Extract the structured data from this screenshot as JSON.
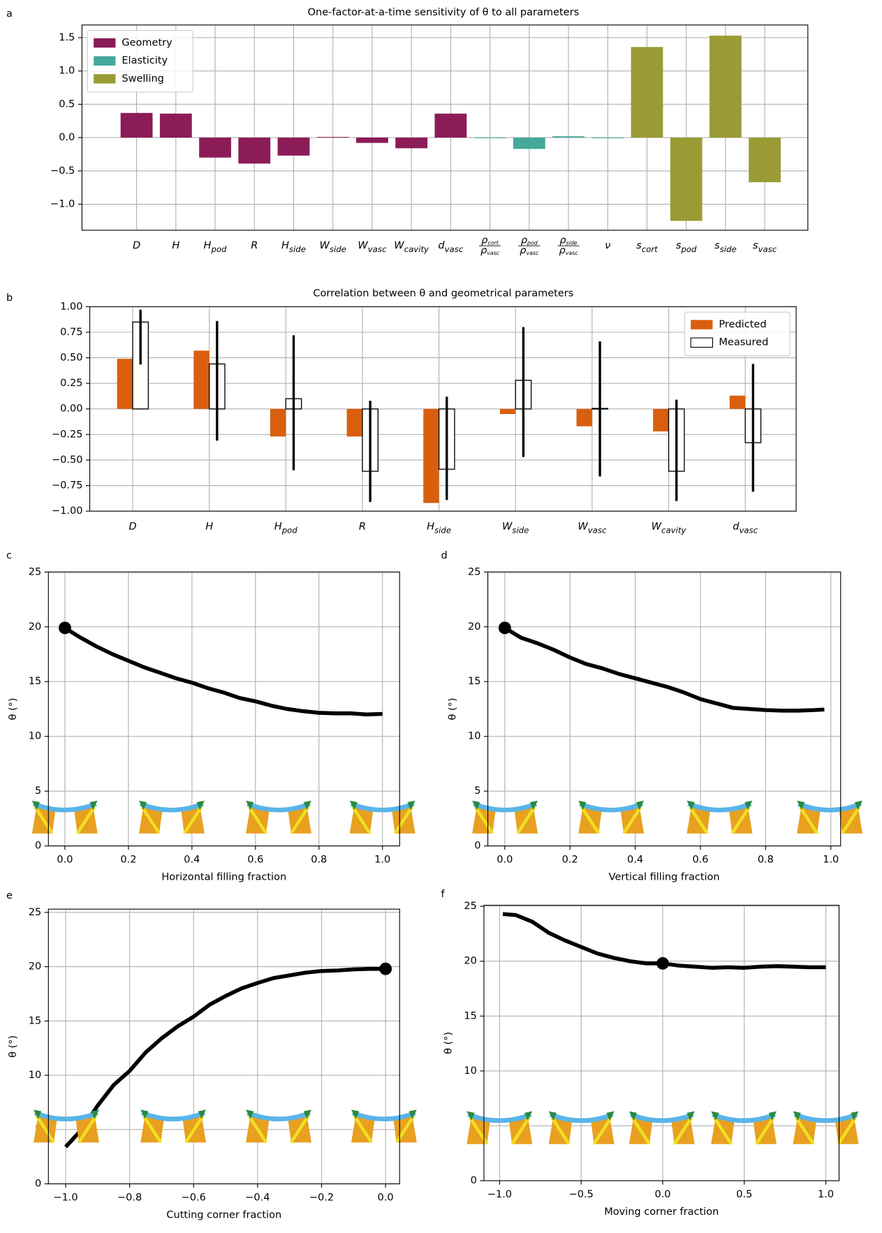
{
  "chart_data": [
    {
      "type": "bar",
      "label": "a",
      "title": "One-factor-at-a-time sensitivity of θ to all parameters",
      "categories": [
        "D",
        "H",
        {
          "main": "H",
          "sub": "pod"
        },
        "R",
        {
          "main": "H",
          "sub": "side"
        },
        {
          "main": "W",
          "sub": "side"
        },
        {
          "main": "W",
          "sub": "vasc"
        },
        {
          "main": "W",
          "sub": "cavity"
        },
        {
          "main": "d",
          "sub": "vasc"
        },
        {
          "main": "ρ",
          "sub": "cort",
          "den": {
            "main": "ρ",
            "sub": "vasc"
          }
        },
        {
          "main": "ρ",
          "sub": "pod",
          "den": {
            "main": "ρ",
            "sub": "vasc"
          }
        },
        {
          "main": "ρ",
          "sub": "side",
          "den": {
            "main": "ρ",
            "sub": "vasc"
          }
        },
        "ν",
        {
          "main": "s",
          "sub": "cort"
        },
        {
          "main": "s",
          "sub": "pod"
        },
        {
          "main": "s",
          "sub": "side"
        },
        {
          "main": "s",
          "sub": "vasc"
        }
      ],
      "series": [
        {
          "name": "Geometry",
          "color": "#8b1c57",
          "values": [
            0.37,
            0.36,
            -0.3,
            -0.39,
            -0.27,
            0.01,
            -0.08,
            -0.16,
            0.36,
            null,
            null,
            null,
            null,
            null,
            null,
            null,
            null
          ]
        },
        {
          "name": "Elasticity",
          "color": "#44a99b",
          "values": [
            null,
            null,
            null,
            null,
            null,
            null,
            null,
            null,
            null,
            0,
            -0.17,
            0.02,
            0,
            null,
            null,
            null,
            null
          ]
        },
        {
          "name": "Swelling",
          "color": "#9b9b36",
          "values": [
            null,
            null,
            null,
            null,
            null,
            null,
            null,
            null,
            null,
            null,
            null,
            null,
            null,
            1.36,
            -1.25,
            1.53,
            -0.67
          ]
        }
      ],
      "ylim": [
        -1.39,
        1.69
      ],
      "yticks": [
        1.5,
        {
          "value": 1.0,
          "label": "1.0"
        },
        0.5,
        {
          "value": 0.0,
          "label": "0.0"
        },
        {
          "value": -0.5,
          "label": "−0.5"
        },
        {
          "value": -1.0,
          "label": "−1.0"
        }
      ],
      "grid": true,
      "legend": "upper left"
    },
    {
      "type": "grouped_bar",
      "label": "b",
      "title": "Correlation between θ and geometrical parameters",
      "categories": [
        "D",
        "H",
        {
          "main": "H",
          "sub": "pod"
        },
        "R",
        {
          "main": "H",
          "sub": "side"
        },
        {
          "main": "W",
          "sub": "side"
        },
        {
          "main": "W",
          "sub": "vasc"
        },
        {
          "main": "W",
          "sub": "cavity"
        },
        {
          "main": "d",
          "sub": "vasc"
        }
      ],
      "series": [
        {
          "name": "Predicted",
          "color": "#d95f0e",
          "values": [
            0.49,
            0.57,
            -0.27,
            -0.27,
            -0.92,
            -0.05,
            -0.17,
            -0.22,
            0.13
          ]
        },
        {
          "name": "Measured",
          "color": "#ffffff",
          "edgecolor": "#000000",
          "values": [
            0.85,
            0.44,
            0.1,
            -0.61,
            -0.59,
            0.28,
            0.005,
            -0.61,
            -0.33
          ],
          "ci_low": [
            0.435,
            -0.31,
            -0.6,
            -0.91,
            -0.89,
            -0.47,
            -0.66,
            -0.9,
            -0.81
          ],
          "ci_high": [
            0.97,
            0.86,
            0.72,
            0.08,
            0.12,
            0.8,
            0.66,
            0.09,
            0.44
          ]
        }
      ],
      "ylim": [
        -1.0,
        1.0
      ],
      "yticks": [
        {
          "value": 1.0,
          "label": "1.00"
        },
        0.75,
        {
          "value": 0.5,
          "label": "0.50"
        },
        0.25,
        {
          "value": 0.0,
          "label": "0.00"
        },
        {
          "value": -0.25,
          "label": "−0.25"
        },
        {
          "value": -0.5,
          "label": "−0.50"
        },
        {
          "value": -0.75,
          "label": "−0.75"
        },
        {
          "value": -1.0,
          "label": "−1.00"
        }
      ],
      "grid": true,
      "legend": "upper right"
    },
    {
      "type": "line",
      "label": "c",
      "xlabel": "Horizontal filling fraction",
      "ylabel": "θ (°)",
      "color": "#000000",
      "x": [
        0,
        0.05,
        0.1,
        0.15,
        0.2,
        0.25,
        0.3,
        0.35,
        0.4,
        0.45,
        0.5,
        0.55,
        0.6,
        0.65,
        0.7,
        0.75,
        0.8,
        0.85,
        0.9,
        0.95,
        1.0
      ],
      "values": [
        19.9,
        19.0,
        18.2,
        17.5,
        16.9,
        16.3,
        15.8,
        15.3,
        14.9,
        14.4,
        14.0,
        13.5,
        13.2,
        12.8,
        12.5,
        12.3,
        12.15,
        12.1,
        12.1,
        12.0,
        12.05
      ],
      "highlight_point": [
        0,
        19.9
      ],
      "xlim": [
        -0.052,
        1.054
      ],
      "ylim": [
        0,
        25
      ],
      "xticks": [
        {
          "value": 0,
          "label": "0.0"
        },
        0.2,
        0.4,
        0.6,
        0.8,
        {
          "value": 1,
          "label": "1.0"
        }
      ],
      "yticks": [
        0,
        5,
        10,
        15,
        20,
        25
      ],
      "grid": true
    },
    {
      "type": "line",
      "label": "d",
      "xlabel": "Vertical filling fraction",
      "ylabel": "θ (°)",
      "color": "#000000",
      "x": [
        0,
        0.05,
        0.1,
        0.15,
        0.2,
        0.25,
        0.3,
        0.35,
        0.4,
        0.45,
        0.5,
        0.55,
        0.6,
        0.65,
        0.7,
        0.75,
        0.8,
        0.85,
        0.9,
        0.95,
        0.98
      ],
      "values": [
        19.9,
        19.0,
        18.5,
        17.9,
        17.2,
        16.6,
        16.2,
        15.7,
        15.3,
        14.9,
        14.5,
        14.0,
        13.4,
        13.0,
        12.6,
        12.5,
        12.4,
        12.35,
        12.35,
        12.4,
        12.45
      ],
      "highlight_point": [
        0,
        19.9
      ],
      "xlim": [
        -0.052,
        1.03
      ],
      "ylim": [
        0,
        25
      ],
      "xticks": [
        {
          "value": 0,
          "label": "0.0"
        },
        0.2,
        0.4,
        0.6,
        0.8,
        {
          "value": 1,
          "label": "1.0"
        }
      ],
      "yticks": [
        0,
        5,
        10,
        15,
        20,
        25
      ],
      "grid": true
    },
    {
      "type": "line",
      "label": "e",
      "xlabel": "Cutting corner fraction",
      "ylabel": "θ (°)",
      "color": "#000000",
      "x": [
        -1.0,
        -0.95,
        -0.9,
        -0.85,
        -0.8,
        -0.75,
        -0.7,
        -0.65,
        -0.6,
        -0.55,
        -0.5,
        -0.45,
        -0.4,
        -0.35,
        -0.3,
        -0.25,
        -0.2,
        -0.15,
        -0.1,
        -0.05,
        0.0
      ],
      "values": [
        3.4,
        5.0,
        7.2,
        9.1,
        10.4,
        12.1,
        13.4,
        14.5,
        15.4,
        16.5,
        17.3,
        18.0,
        18.5,
        18.95,
        19.2,
        19.45,
        19.6,
        19.65,
        19.75,
        19.8,
        19.8
      ],
      "highlight_point": [
        0,
        19.8
      ],
      "xlim": [
        -1.054,
        0.044
      ],
      "ylim": [
        0,
        25.3
      ],
      "xticks": [
        {
          "value": -1.0,
          "label": "−1.0"
        },
        {
          "value": -0.8,
          "label": "−0.8"
        },
        {
          "value": -0.6,
          "label": "−0.6"
        },
        {
          "value": -0.4,
          "label": "−0.4"
        },
        {
          "value": -0.2,
          "label": "−0.2"
        },
        {
          "value": 0,
          "label": "0.0"
        }
      ],
      "yticks": [
        0,
        5,
        10,
        15,
        20,
        25
      ],
      "grid": true
    },
    {
      "type": "line",
      "label": "f",
      "xlabel": "Moving corner fraction",
      "ylabel": "θ (°)",
      "color": "#000000",
      "x": [
        -0.98,
        -0.9,
        -0.8,
        -0.7,
        -0.6,
        -0.5,
        -0.4,
        -0.3,
        -0.2,
        -0.1,
        0.0,
        0.1,
        0.2,
        0.3,
        0.4,
        0.5,
        0.6,
        0.7,
        0.8,
        0.9,
        1.0
      ],
      "values": [
        24.3,
        24.2,
        23.6,
        22.6,
        21.9,
        21.3,
        20.7,
        20.3,
        20.0,
        19.8,
        19.8,
        19.6,
        19.5,
        19.4,
        19.45,
        19.4,
        19.5,
        19.55,
        19.5,
        19.45,
        19.45
      ],
      "highlight_point": [
        0,
        19.8
      ],
      "xlim": [
        -1.096,
        1.081
      ],
      "ylim": [
        0,
        25.1
      ],
      "xticks": [
        {
          "value": -1.0,
          "label": "−1.0"
        },
        {
          "value": -0.5,
          "label": "−0.5"
        },
        {
          "value": 0,
          "label": "0.0"
        },
        0.5,
        {
          "value": 1,
          "label": "1.0"
        }
      ],
      "yticks": [
        0,
        5,
        10,
        15,
        20,
        25
      ],
      "grid": true
    }
  ]
}
